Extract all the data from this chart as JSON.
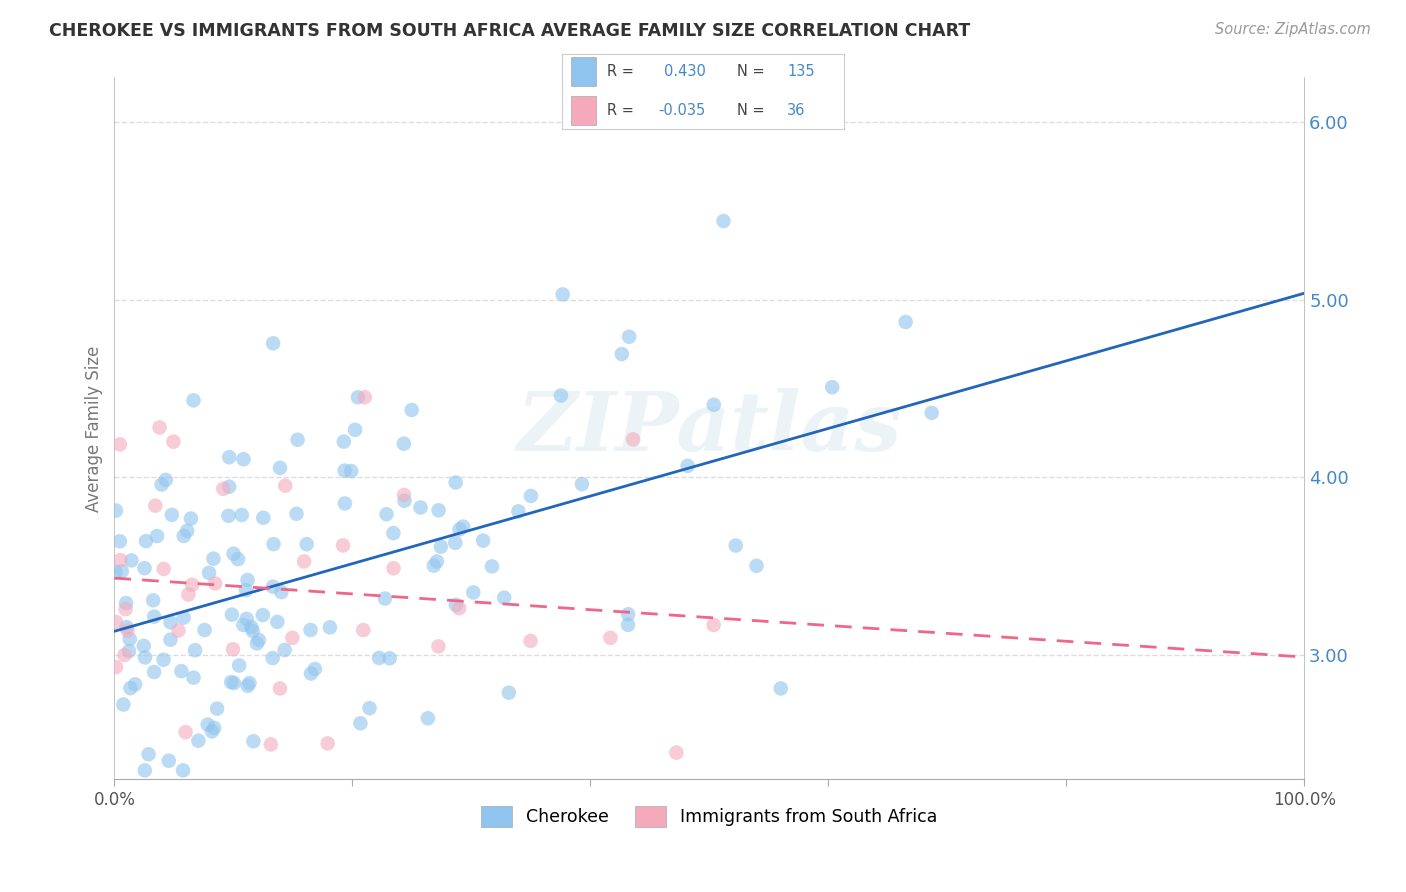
{
  "title": "CHEROKEE VS IMMIGRANTS FROM SOUTH AFRICA AVERAGE FAMILY SIZE CORRELATION CHART",
  "source": "Source: ZipAtlas.com",
  "ylabel": "Average Family Size",
  "yticks": [
    3.0,
    4.0,
    5.0,
    6.0
  ],
  "xmin": 0.0,
  "xmax": 1.0,
  "ymin": 2.3,
  "ymax": 6.25,
  "cherokee_color": "#8EC4EE",
  "sa_color": "#F4AABB",
  "cherokee_line_color": "#2266BB",
  "sa_line_color": "#EE6688",
  "cherokee_R": 0.43,
  "cherokee_N": 135,
  "sa_R": -0.035,
  "sa_N": 36,
  "legend_label1": "Cherokee",
  "legend_label2": "Immigrants from South Africa",
  "watermark": "ZIPatlas",
  "background_color": "#ffffff",
  "grid_color": "#dddddd",
  "title_color": "#333333",
  "source_color": "#999999",
  "ytick_color": "#4488CC",
  "ylabel_color": "#777777"
}
